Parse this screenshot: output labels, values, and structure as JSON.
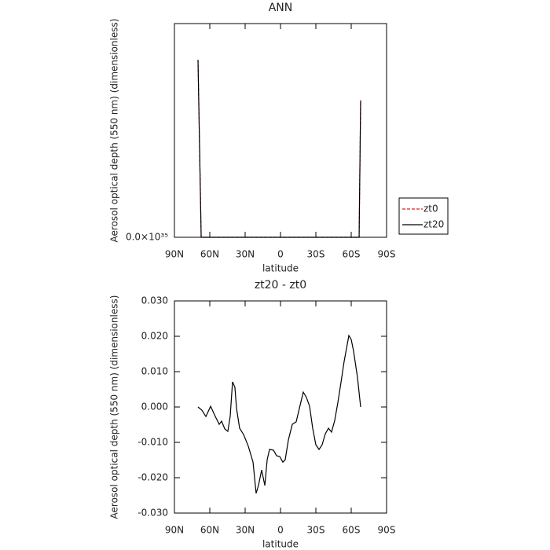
{
  "chart_data": [
    {
      "type": "line",
      "title": "ANN",
      "xlabel": "latitude",
      "ylabel": "Aerosol optical depth (550 nm) (dimensionless)",
      "xlim": [
        90,
        -90
      ],
      "xticks": [
        {
          "value": 90,
          "label": "90N"
        },
        {
          "value": 60,
          "label": "60N"
        },
        {
          "value": 30,
          "label": "30N"
        },
        0,
        {
          "value": -30,
          "label": "30S"
        },
        {
          "value": -60,
          "label": "60S"
        },
        {
          "value": -90,
          "label": "90S"
        }
      ],
      "ylim": [
        0,
        1e+35
      ],
      "yticks": [
        {
          "value": 0,
          "label": "0.0×10³⁵"
        }
      ],
      "x": [
        70,
        67.3,
        0,
        -66.7,
        -68
      ],
      "series": [
        {
          "name": "zt0",
          "color": "#d62020",
          "dash": true,
          "values": [
            8.3e+34,
            0,
            0,
            0,
            6.4e+34
          ]
        },
        {
          "name": "zt20",
          "color": "#000000",
          "dash": false,
          "values": [
            8.3e+34,
            0,
            0,
            0,
            6.4e+34
          ]
        }
      ],
      "legend": "right"
    },
    {
      "type": "line",
      "title": "zt20 - zt0",
      "xlabel": "latitude",
      "ylabel": "Aerosol optical depth (550 nm) (dimensionless)",
      "xlim": [
        90,
        -90
      ],
      "xticks": [
        {
          "value": 90,
          "label": "90N"
        },
        {
          "value": 60,
          "label": "60N"
        },
        {
          "value": 30,
          "label": "30N"
        },
        0,
        {
          "value": -30,
          "label": "30S"
        },
        {
          "value": -60,
          "label": "60S"
        },
        {
          "value": -90,
          "label": "90S"
        }
      ],
      "ylim": [
        -0.03,
        0.03
      ],
      "yticks": [
        {
          "value": 0.03,
          "label": "0.030"
        },
        {
          "value": 0.02,
          "label": "0.020"
        },
        {
          "value": 0.01,
          "label": "0.010"
        },
        {
          "value": 0,
          "label": "0.000"
        },
        {
          "value": -0.01,
          "label": "-0.010"
        },
        {
          "value": -0.02,
          "label": "-0.020"
        },
        {
          "value": -0.03,
          "label": "-0.030"
        }
      ],
      "color": "#000000",
      "x": [
        70,
        66.7,
        63.3,
        59.3,
        55.3,
        52,
        50,
        47.3,
        44.7,
        42.7,
        40.7,
        38.7,
        37.3,
        34.7,
        31.3,
        27.3,
        23.3,
        20.7,
        18.7,
        16,
        13.3,
        11.3,
        9.3,
        6,
        3.3,
        0.7,
        -2,
        -4,
        -6.7,
        -10,
        -13.3,
        -16,
        -19.3,
        -22,
        -24.7,
        -27.3,
        -30,
        -32.7,
        -35.3,
        -38,
        -40.7,
        -43.3,
        -46,
        -48.7,
        -51.3,
        -54,
        -58,
        -60,
        -62,
        -65.3,
        -68
      ],
      "values": [
        0,
        -0.0009,
        -0.0027,
        0.0002,
        -0.0027,
        -0.0049,
        -0.004,
        -0.0062,
        -0.0069,
        -0.0027,
        0.0071,
        0.0056,
        -0.0004,
        -0.006,
        -0.0078,
        -0.0111,
        -0.0156,
        -0.0244,
        -0.0222,
        -0.0178,
        -0.0222,
        -0.0149,
        -0.012,
        -0.0122,
        -0.0138,
        -0.014,
        -0.0156,
        -0.0149,
        -0.0093,
        -0.0049,
        -0.0042,
        -0.0004,
        0.0042,
        0.0027,
        0.0002,
        -0.006,
        -0.0107,
        -0.012,
        -0.0107,
        -0.0076,
        -0.006,
        -0.0071,
        -0.0038,
        0.0013,
        0.0069,
        0.0129,
        0.0202,
        0.0191,
        0.0158,
        0.0084,
        0
      ]
    }
  ]
}
